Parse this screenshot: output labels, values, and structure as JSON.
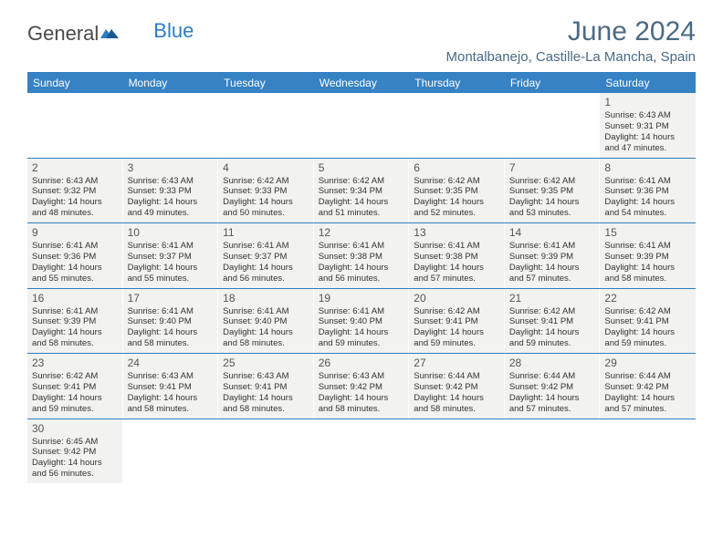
{
  "logo": {
    "text1": "General",
    "text2": "Blue"
  },
  "title": "June 2024",
  "location": "Montalbanejo, Castille-La Mancha, Spain",
  "dayNames": [
    "Sunday",
    "Monday",
    "Tuesday",
    "Wednesday",
    "Thursday",
    "Friday",
    "Saturday"
  ],
  "colors": {
    "headerBg": "#3682c4",
    "border": "#2d7dc4",
    "cellBg": "#f2f2f0",
    "titleColor": "#4a6a85"
  },
  "weeks": [
    [
      null,
      null,
      null,
      null,
      null,
      null,
      {
        "n": "1",
        "sr": "6:43 AM",
        "ss": "9:31 PM",
        "dl": "14 hours and 47 minutes."
      }
    ],
    [
      {
        "n": "2",
        "sr": "6:43 AM",
        "ss": "9:32 PM",
        "dl": "14 hours and 48 minutes."
      },
      {
        "n": "3",
        "sr": "6:43 AM",
        "ss": "9:33 PM",
        "dl": "14 hours and 49 minutes."
      },
      {
        "n": "4",
        "sr": "6:42 AM",
        "ss": "9:33 PM",
        "dl": "14 hours and 50 minutes."
      },
      {
        "n": "5",
        "sr": "6:42 AM",
        "ss": "9:34 PM",
        "dl": "14 hours and 51 minutes."
      },
      {
        "n": "6",
        "sr": "6:42 AM",
        "ss": "9:35 PM",
        "dl": "14 hours and 52 minutes."
      },
      {
        "n": "7",
        "sr": "6:42 AM",
        "ss": "9:35 PM",
        "dl": "14 hours and 53 minutes."
      },
      {
        "n": "8",
        "sr": "6:41 AM",
        "ss": "9:36 PM",
        "dl": "14 hours and 54 minutes."
      }
    ],
    [
      {
        "n": "9",
        "sr": "6:41 AM",
        "ss": "9:36 PM",
        "dl": "14 hours and 55 minutes."
      },
      {
        "n": "10",
        "sr": "6:41 AM",
        "ss": "9:37 PM",
        "dl": "14 hours and 55 minutes."
      },
      {
        "n": "11",
        "sr": "6:41 AM",
        "ss": "9:37 PM",
        "dl": "14 hours and 56 minutes."
      },
      {
        "n": "12",
        "sr": "6:41 AM",
        "ss": "9:38 PM",
        "dl": "14 hours and 56 minutes."
      },
      {
        "n": "13",
        "sr": "6:41 AM",
        "ss": "9:38 PM",
        "dl": "14 hours and 57 minutes."
      },
      {
        "n": "14",
        "sr": "6:41 AM",
        "ss": "9:39 PM",
        "dl": "14 hours and 57 minutes."
      },
      {
        "n": "15",
        "sr": "6:41 AM",
        "ss": "9:39 PM",
        "dl": "14 hours and 58 minutes."
      }
    ],
    [
      {
        "n": "16",
        "sr": "6:41 AM",
        "ss": "9:39 PM",
        "dl": "14 hours and 58 minutes."
      },
      {
        "n": "17",
        "sr": "6:41 AM",
        "ss": "9:40 PM",
        "dl": "14 hours and 58 minutes."
      },
      {
        "n": "18",
        "sr": "6:41 AM",
        "ss": "9:40 PM",
        "dl": "14 hours and 58 minutes."
      },
      {
        "n": "19",
        "sr": "6:41 AM",
        "ss": "9:40 PM",
        "dl": "14 hours and 59 minutes."
      },
      {
        "n": "20",
        "sr": "6:42 AM",
        "ss": "9:41 PM",
        "dl": "14 hours and 59 minutes."
      },
      {
        "n": "21",
        "sr": "6:42 AM",
        "ss": "9:41 PM",
        "dl": "14 hours and 59 minutes."
      },
      {
        "n": "22",
        "sr": "6:42 AM",
        "ss": "9:41 PM",
        "dl": "14 hours and 59 minutes."
      }
    ],
    [
      {
        "n": "23",
        "sr": "6:42 AM",
        "ss": "9:41 PM",
        "dl": "14 hours and 59 minutes."
      },
      {
        "n": "24",
        "sr": "6:43 AM",
        "ss": "9:41 PM",
        "dl": "14 hours and 58 minutes."
      },
      {
        "n": "25",
        "sr": "6:43 AM",
        "ss": "9:41 PM",
        "dl": "14 hours and 58 minutes."
      },
      {
        "n": "26",
        "sr": "6:43 AM",
        "ss": "9:42 PM",
        "dl": "14 hours and 58 minutes."
      },
      {
        "n": "27",
        "sr": "6:44 AM",
        "ss": "9:42 PM",
        "dl": "14 hours and 58 minutes."
      },
      {
        "n": "28",
        "sr": "6:44 AM",
        "ss": "9:42 PM",
        "dl": "14 hours and 57 minutes."
      },
      {
        "n": "29",
        "sr": "6:44 AM",
        "ss": "9:42 PM",
        "dl": "14 hours and 57 minutes."
      }
    ],
    [
      {
        "n": "30",
        "sr": "6:45 AM",
        "ss": "9:42 PM",
        "dl": "14 hours and 56 minutes."
      },
      null,
      null,
      null,
      null,
      null,
      null
    ]
  ],
  "labels": {
    "sunrise": "Sunrise: ",
    "sunset": "Sunset: ",
    "daylight": "Daylight: "
  }
}
